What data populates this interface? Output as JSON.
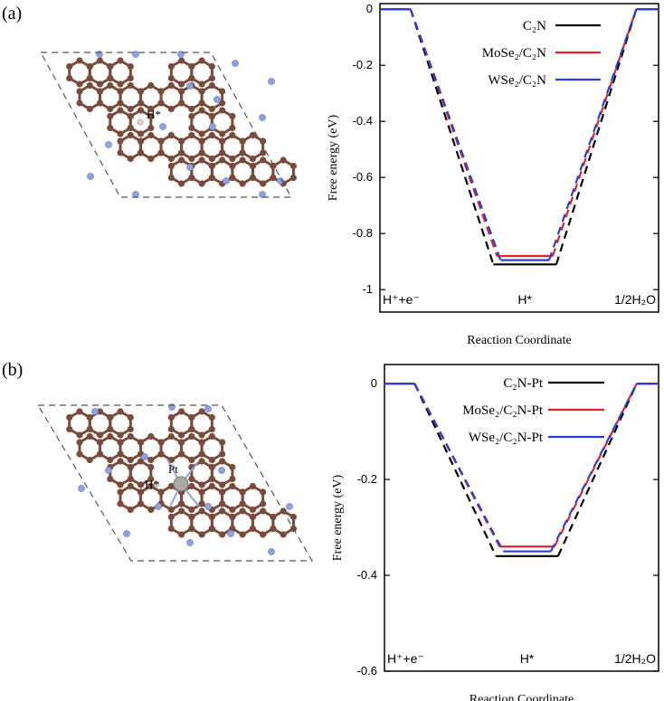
{
  "panels": [
    {
      "label": "(a)",
      "structure": {
        "adsorbate_label": "H*",
        "metal_label": ""
      },
      "chart": {
        "ylabel": "Free energy (eV)",
        "xlabel": "Reaction Coordinate",
        "stage_labels": [
          "H⁺+e⁻",
          "H*",
          "1/2H₂O"
        ],
        "yticks": [
          "0",
          "-0.2",
          "-0.4",
          "-0.6",
          "-0.8",
          "-1"
        ]
      }
    },
    {
      "label": "(b)",
      "structure": {
        "adsorbate_label": "H*",
        "metal_label": "Pt"
      },
      "chart": {
        "ylabel": "Free energy (eV)",
        "xlabel": "Reaction Coordinate",
        "stage_labels": [
          "H⁺+e⁻",
          "H*",
          "1/2H₂O"
        ],
        "yticks": [
          "0",
          "-0.2",
          "-0.4",
          "-0.6"
        ]
      }
    }
  ],
  "chart_data": [
    {
      "type": "line",
      "title": "",
      "xlabel": "Reaction Coordinate",
      "ylabel": "Free energy (eV)",
      "categories": [
        "H⁺+e⁻",
        "H*",
        "1/2H₂O"
      ],
      "ylim": [
        -1.08,
        0.02
      ],
      "grid": false,
      "legend": "top-right",
      "series": [
        {
          "name": "C₂N",
          "color": "#000000",
          "values": [
            0,
            -0.91,
            0
          ]
        },
        {
          "name": "MoSe₂/C₂N",
          "color": "#e8202a",
          "values": [
            0,
            -0.88,
            0
          ]
        },
        {
          "name": "WSe₂/C₂N",
          "color": "#2a3fd6",
          "values": [
            0,
            -0.895,
            0
          ]
        }
      ]
    },
    {
      "type": "line",
      "title": "",
      "xlabel": "Reaction Coordinate",
      "ylabel": "Free energy (eV)",
      "categories": [
        "H⁺+e⁻",
        "H*",
        "1/2H₂O"
      ],
      "ylim": [
        -0.6,
        0.04
      ],
      "grid": false,
      "legend": "top-right",
      "series": [
        {
          "name": "C₂N-Pt",
          "color": "#000000",
          "values": [
            0,
            -0.36,
            0
          ]
        },
        {
          "name": "MoSe₂/C₂N-Pt",
          "color": "#e8202a",
          "values": [
            0,
            -0.34,
            0
          ]
        },
        {
          "name": "WSe₂/C₂N-Pt",
          "color": "#2a3fd6",
          "values": [
            0,
            -0.35,
            0
          ]
        }
      ]
    }
  ]
}
